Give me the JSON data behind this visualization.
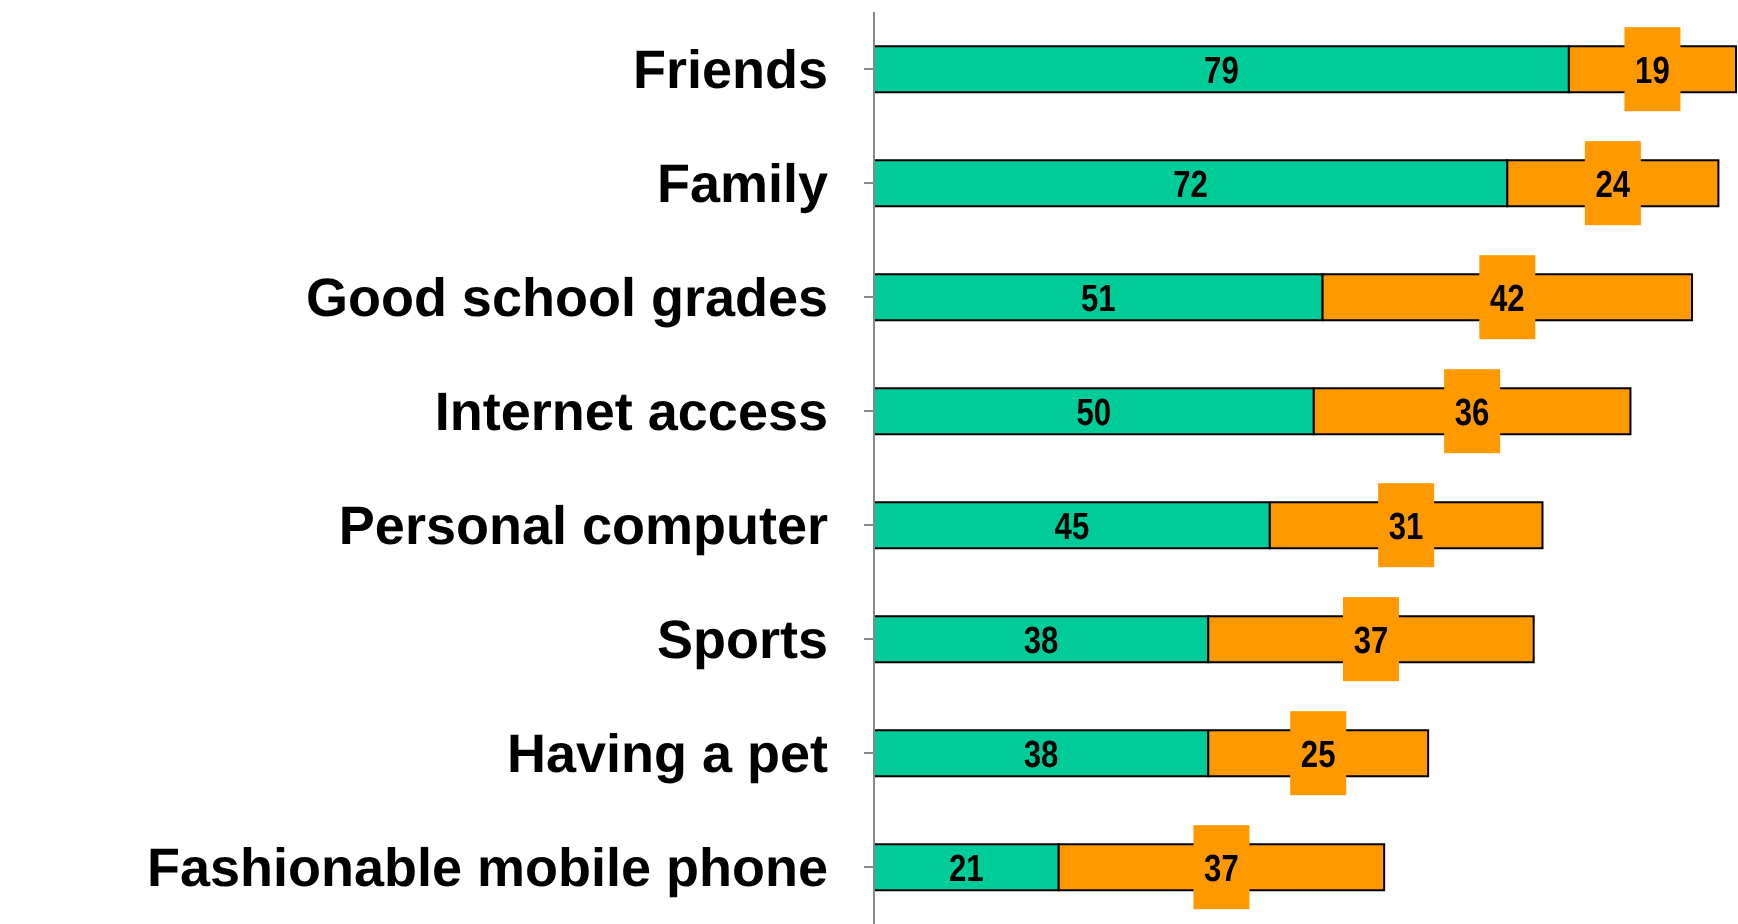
{
  "chart_data": {
    "type": "bar",
    "orientation": "horizontal",
    "stacked": true,
    "data_labels": true,
    "categories": [
      "Friends",
      "Family",
      "Good school grades",
      "Internet access",
      "Personal computer",
      "Sports",
      "Having a pet",
      "Fashionable mobile phone"
    ],
    "series": [
      {
        "color": "#00cc99",
        "values": [
          79,
          72,
          51,
          50,
          45,
          38,
          38,
          21
        ]
      },
      {
        "color": "#ff9900",
        "values": [
          19,
          24,
          42,
          36,
          31,
          37,
          25,
          37
        ]
      }
    ]
  }
}
